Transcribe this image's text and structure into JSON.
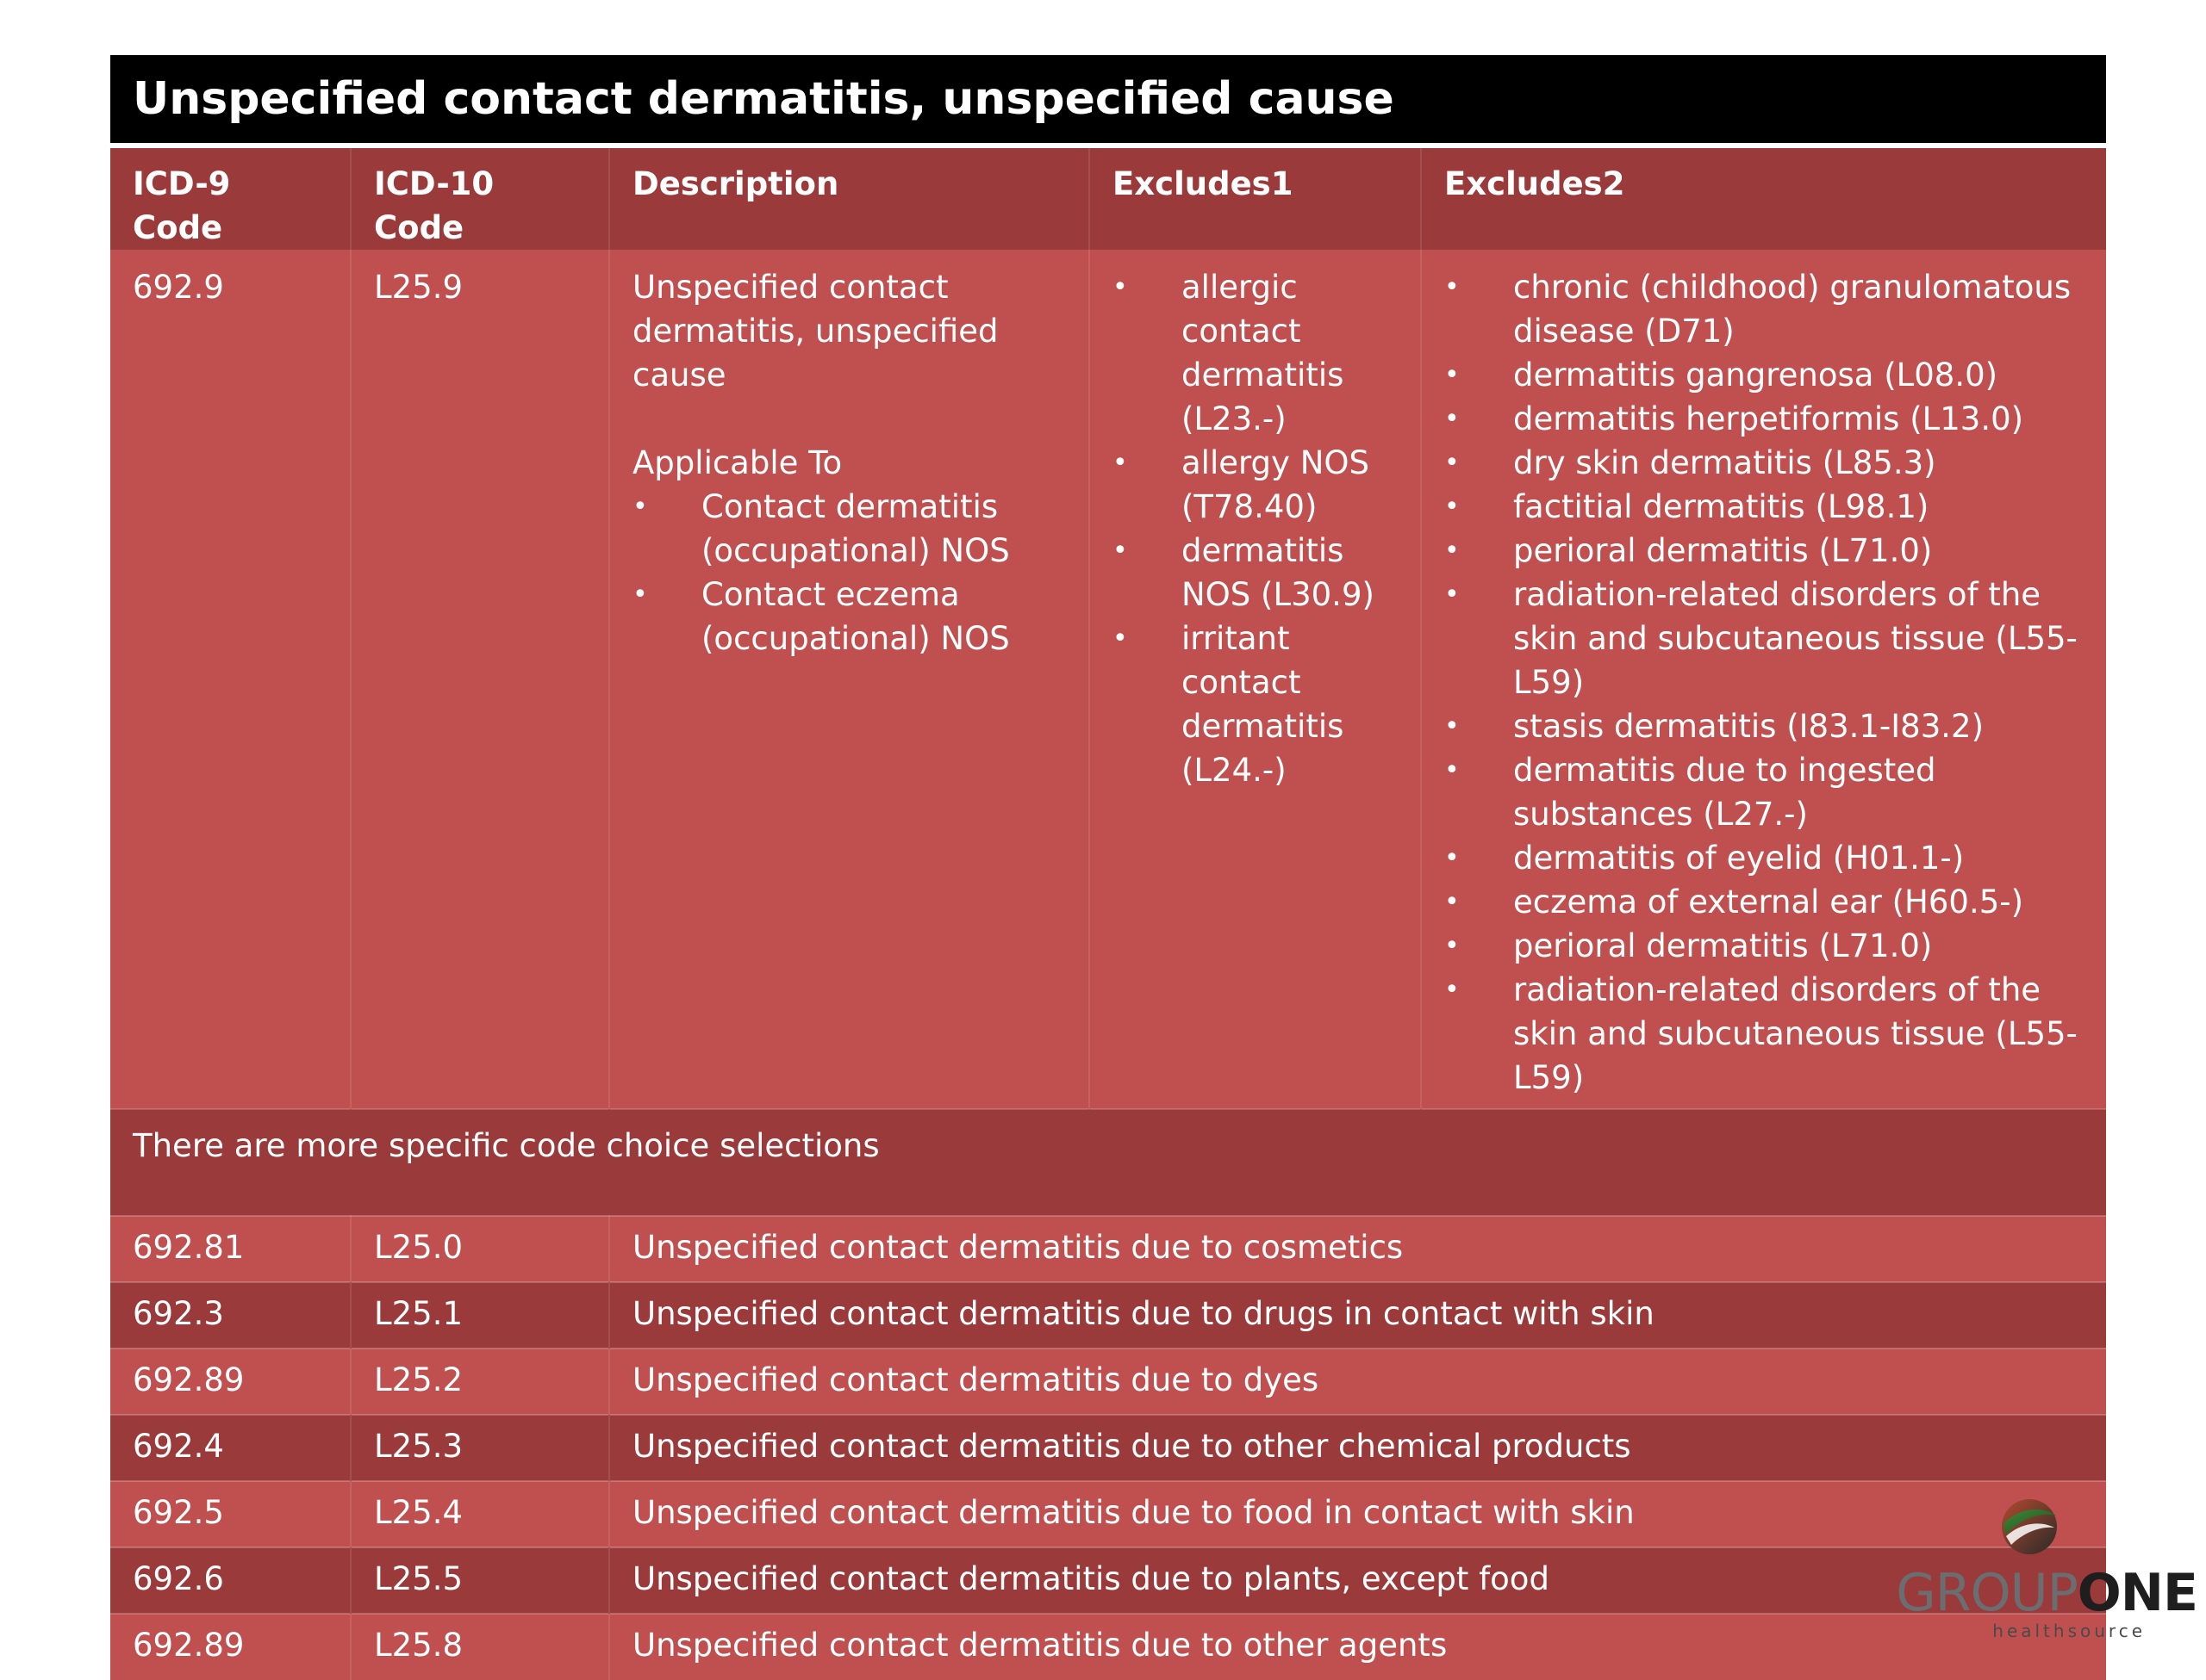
{
  "title": "Unspecified contact dermatitis, unspecified cause",
  "headers": [
    "ICD-9 Code",
    "ICD-10 Code",
    "Description",
    "Excludes1",
    "Excludes2"
  ],
  "main": {
    "icd9": "692.9",
    "icd10": "L25.9",
    "description": "Unspecified contact dermatitis, unspecified cause",
    "applicable_label": "Applicable To",
    "applicable": [
      "Contact dermatitis (occupational) NOS",
      "Contact eczema (occupational) NOS"
    ],
    "excludes1": [
      "allergic contact dermatitis (L23.-)",
      "allergy NOS (T78.40)",
      "dermatitis NOS (L30.9)",
      "irritant contact dermatitis (L24.-)"
    ],
    "excludes2": [
      "chronic (childhood) granulomatous disease (D71)",
      "dermatitis gangrenosa (L08.0)",
      "dermatitis herpetiformis (L13.0)",
      "dry skin dermatitis (L85.3)",
      "factitial dermatitis (L98.1)",
      "perioral dermatitis (L71.0)",
      "radiation-related disorders of the skin and subcutaneous tissue (L55-L59)",
      "stasis dermatitis (I83.1-I83.2)",
      "dermatitis due to ingested substances (L27.-)",
      "dermatitis of eyelid (H01.1-)",
      "eczema of external ear (H60.5-)",
      "perioral dermatitis (L71.0)",
      "radiation-related disorders of the skin and subcutaneous tissue (L55-L59)"
    ]
  },
  "note": "There are more specific code choice selections",
  "rows": [
    {
      "icd9": "692.81",
      "icd10": "L25.0",
      "desc": "Unspecified contact dermatitis due to cosmetics"
    },
    {
      "icd9": "692.3",
      "icd10": "L25.1",
      "desc": "Unspecified contact dermatitis due to drugs in contact with skin"
    },
    {
      "icd9": "692.89",
      "icd10": "L25.2",
      "desc": "Unspecified contact dermatitis due to dyes"
    },
    {
      "icd9": "692.4",
      "icd10": "L25.3",
      "desc": "Unspecified contact dermatitis due to other chemical products"
    },
    {
      "icd9": "692.5",
      "icd10": "L25.4",
      "desc": "Unspecified contact dermatitis due to food in contact with skin"
    },
    {
      "icd9": "692.6",
      "icd10": "L25.5",
      "desc": "Unspecified contact dermatitis due to plants, except food"
    },
    {
      "icd9": "692.89",
      "icd10": "L25.8",
      "desc": "Unspecified contact dermatitis due to other agents"
    }
  ],
  "logo": {
    "word1": "GROUP",
    "word2": "ONE",
    "sub": "healthsource"
  },
  "colors": {
    "title_bg": "#000000",
    "dark_row": "#9a3a3b",
    "light_row": "#c0504f"
  }
}
